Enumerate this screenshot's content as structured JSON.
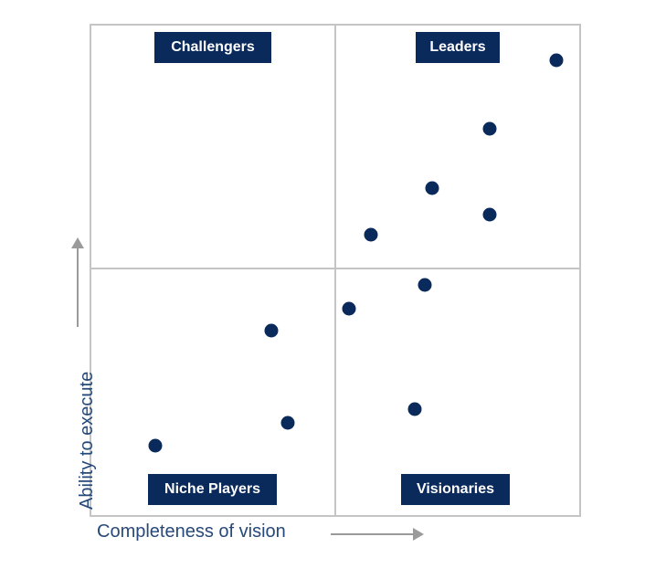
{
  "chart_data": {
    "type": "scatter",
    "title": "",
    "xlabel": "Completeness of vision",
    "ylabel": "Ability to execute",
    "xlim": [
      0,
      100
    ],
    "ylim": [
      0,
      100
    ],
    "grid": false,
    "quadrant_dividers": {
      "x": 50,
      "y": 50
    },
    "quadrants": [
      {
        "name": "Challengers",
        "position": "top-left"
      },
      {
        "name": "Leaders",
        "position": "top-right"
      },
      {
        "name": "Niche Players",
        "position": "bottom-left"
      },
      {
        "name": "Visionaries",
        "position": "bottom-right"
      }
    ],
    "points": [
      {
        "x": 95.3,
        "y": 92.6
      },
      {
        "x": 81.7,
        "y": 78.6
      },
      {
        "x": 69.96,
        "y": 66.5
      },
      {
        "x": 81.7,
        "y": 61.2
      },
      {
        "x": 57.5,
        "y": 57.1
      },
      {
        "x": 68.5,
        "y": 46.8
      },
      {
        "x": 53.0,
        "y": 42.0
      },
      {
        "x": 37.1,
        "y": 37.5
      },
      {
        "x": 40.5,
        "y": 18.8
      },
      {
        "x": 66.4,
        "y": 21.6
      },
      {
        "x": 13.4,
        "y": 14.1
      }
    ],
    "point_color": "#0b2a5c",
    "label_bg_color": "#0b2a5c",
    "axis_label_color": "#26497a",
    "arrow_color": "#9a9a9a",
    "legend": "none"
  },
  "labels": {
    "challengers": "Challengers",
    "leaders": "Leaders",
    "niche": "Niche Players",
    "visionaries": "Visionaries",
    "x_axis": "Completeness of vision",
    "y_axis": "Ability to execute"
  }
}
